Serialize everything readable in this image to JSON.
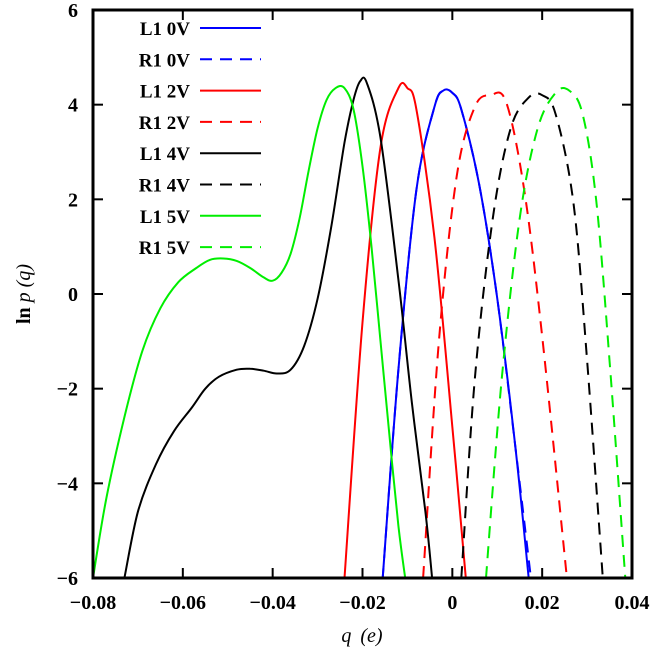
{
  "chart_data": {
    "type": "line",
    "title": "",
    "xlabel": {
      "main": "q",
      "unit": "(e)"
    },
    "ylabel": {
      "prefix": "ln ",
      "main": "p",
      "arg": "(q)"
    },
    "xlim": [
      -0.08,
      0.04
    ],
    "ylim": [
      -6,
      6
    ],
    "xticks": [
      -0.08,
      -0.06,
      -0.04,
      -0.02,
      0,
      0.02,
      0.04
    ],
    "xtick_labels": [
      "−0.08",
      "−0.06",
      "−0.04",
      "−0.02",
      "0",
      "0.02",
      "0.04"
    ],
    "yticks": [
      -6,
      -4,
      -2,
      0,
      2,
      4,
      6
    ],
    "ytick_labels": [
      "−6",
      "−4",
      "−2",
      "0",
      "2",
      "4",
      "6"
    ],
    "grid": false,
    "legend_position": "top-left",
    "series": [
      {
        "name": "L1 0V",
        "color": "#0000ff",
        "dash": "solid",
        "x": [
          -0.0155,
          -0.012,
          -0.008,
          -0.004,
          -0.002,
          0.0,
          0.002,
          0.006,
          0.01,
          0.014,
          0.017
        ],
        "y": [
          -6,
          -1.6,
          2.2,
          3.95,
          4.3,
          4.25,
          3.9,
          2.3,
          -0.1,
          -3.2,
          -6
        ]
      },
      {
        "name": "R1 0V",
        "color": "#0000ff",
        "dash": "dashed",
        "x": [
          -0.0155,
          -0.012,
          -0.008,
          -0.004,
          -0.002,
          0.0,
          0.002,
          0.006,
          0.01,
          0.014,
          0.0175
        ],
        "y": [
          -6,
          -1.6,
          2.2,
          3.95,
          4.3,
          4.25,
          3.9,
          2.3,
          -0.1,
          -3.2,
          -6
        ]
      },
      {
        "name": "L1 2V",
        "color": "#ff0000",
        "dash": "solid",
        "x": [
          -0.024,
          -0.02,
          -0.016,
          -0.012,
          -0.01,
          -0.008,
          -0.004,
          0.0,
          0.003
        ],
        "y": [
          -6,
          -0.6,
          3.1,
          4.35,
          4.35,
          3.9,
          1.2,
          -2.8,
          -6
        ]
      },
      {
        "name": "R1 2V",
        "color": "#ff0000",
        "dash": "dashed",
        "x": [
          -0.0065,
          -0.003,
          0.001,
          0.005,
          0.0085,
          0.012,
          0.016,
          0.02,
          0.0255
        ],
        "y": [
          -6,
          -1.0,
          2.5,
          3.95,
          4.2,
          4.05,
          2.2,
          -0.9,
          -6
        ]
      },
      {
        "name": "L1 4V",
        "color": "#000000",
        "dash": "solid",
        "x": [
          -0.073,
          -0.07,
          -0.066,
          -0.062,
          -0.058,
          -0.055,
          -0.052,
          -0.048,
          -0.045,
          -0.042,
          -0.039,
          -0.036,
          -0.033,
          -0.03,
          -0.027,
          -0.024,
          -0.022,
          -0.0205,
          -0.019,
          -0.016,
          -0.012,
          -0.009,
          -0.006,
          -0.0045
        ],
        "y": [
          -6,
          -4.6,
          -3.6,
          -2.9,
          -2.4,
          -2.0,
          -1.75,
          -1.6,
          -1.58,
          -1.62,
          -1.68,
          -1.6,
          -1.1,
          -0.1,
          1.4,
          3.2,
          4.1,
          4.5,
          4.45,
          3.3,
          0.3,
          -2.3,
          -4.6,
          -6
        ]
      },
      {
        "name": "R1 4V",
        "color": "#000000",
        "dash": "dashed",
        "x": [
          0.002,
          0.005,
          0.009,
          0.013,
          0.017,
          0.02,
          0.023,
          0.027,
          0.03,
          0.0335
        ],
        "y": [
          -6,
          -1.8,
          1.6,
          3.5,
          4.15,
          4.2,
          3.8,
          1.9,
          -1.4,
          -6
        ]
      },
      {
        "name": "L1 5V",
        "color": "#00ee00",
        "dash": "solid",
        "x": [
          -0.08,
          -0.077,
          -0.073,
          -0.069,
          -0.065,
          -0.061,
          -0.057,
          -0.054,
          -0.051,
          -0.048,
          -0.045,
          -0.042,
          -0.04,
          -0.038,
          -0.036,
          -0.034,
          -0.032,
          -0.03,
          -0.028,
          -0.026,
          -0.024,
          -0.022,
          -0.02,
          -0.018,
          -0.016,
          -0.014,
          -0.012,
          -0.0105
        ],
        "y": [
          -6,
          -4.3,
          -2.6,
          -1.2,
          -0.3,
          0.25,
          0.55,
          0.72,
          0.75,
          0.7,
          0.55,
          0.35,
          0.28,
          0.45,
          0.85,
          1.6,
          2.6,
          3.5,
          4.1,
          4.35,
          4.35,
          3.9,
          2.7,
          1.0,
          -1.0,
          -3.0,
          -4.9,
          -6
        ]
      },
      {
        "name": "R1 5V",
        "color": "#00ee00",
        "dash": "dashed",
        "x": [
          0.0075,
          0.011,
          0.015,
          0.019,
          0.023,
          0.026,
          0.029,
          0.032,
          0.035,
          0.0385
        ],
        "y": [
          -6,
          -1.8,
          1.6,
          3.5,
          4.25,
          4.3,
          3.8,
          2.0,
          -1.4,
          -6
        ]
      }
    ]
  }
}
